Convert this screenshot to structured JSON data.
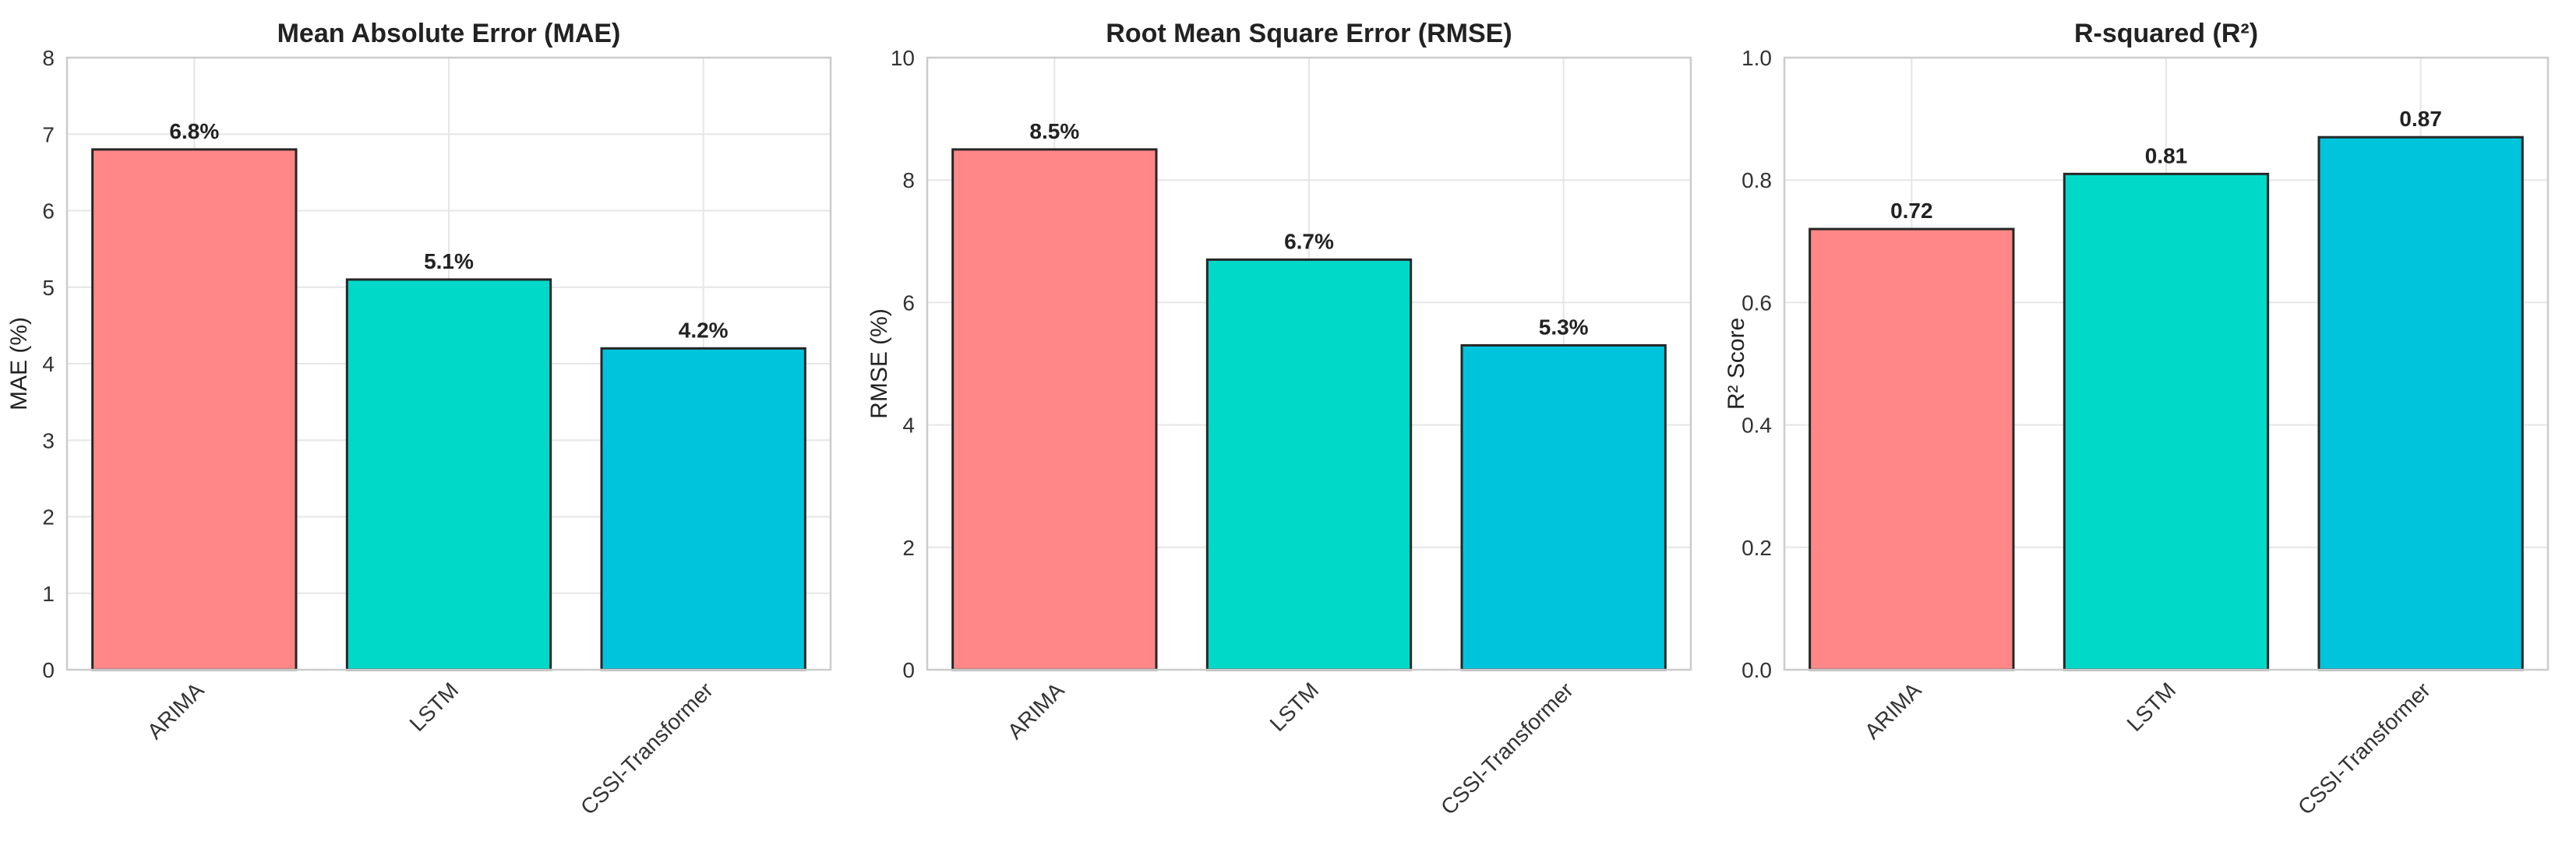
{
  "chart_data": [
    {
      "type": "bar",
      "title": "Mean Absolute Error (MAE)",
      "xlabel": "",
      "ylabel": "MAE (%)",
      "categories": [
        "ARIMA",
        "LSTM",
        "CSSI-Transformer"
      ],
      "values": [
        6.8,
        5.1,
        4.2
      ],
      "data_labels": [
        "6.8%",
        "5.1%",
        "4.2%"
      ],
      "ylim": [
        0,
        8
      ],
      "yticks": [
        0,
        1,
        2,
        3,
        4,
        5,
        6,
        7,
        8
      ],
      "ytick_labels": [
        "0",
        "1",
        "2",
        "3",
        "4",
        "5",
        "6",
        "7",
        "8"
      ],
      "colors": [
        "#ff8787",
        "#00d9c8",
        "#00c4dc"
      ],
      "grid": true
    },
    {
      "type": "bar",
      "title": "Root Mean Square Error (RMSE)",
      "xlabel": "",
      "ylabel": "RMSE (%)",
      "categories": [
        "ARIMA",
        "LSTM",
        "CSSI-Transformer"
      ],
      "values": [
        8.5,
        6.7,
        5.3
      ],
      "data_labels": [
        "8.5%",
        "6.7%",
        "5.3%"
      ],
      "ylim": [
        0,
        10
      ],
      "yticks": [
        0,
        2,
        4,
        6,
        8,
        10
      ],
      "ytick_labels": [
        "0",
        "2",
        "4",
        "6",
        "8",
        "10"
      ],
      "colors": [
        "#ff8787",
        "#00d9c8",
        "#00c4dc"
      ],
      "grid": true
    },
    {
      "type": "bar",
      "title": "R-squared (R²)",
      "xlabel": "",
      "ylabel": "R² Score",
      "categories": [
        "ARIMA",
        "LSTM",
        "CSSI-Transformer"
      ],
      "values": [
        0.72,
        0.81,
        0.87
      ],
      "data_labels": [
        "0.72",
        "0.81",
        "0.87"
      ],
      "ylim": [
        0,
        1
      ],
      "yticks": [
        0,
        0.2,
        0.4,
        0.6,
        0.8,
        1.0
      ],
      "ytick_labels": [
        "0.0",
        "0.2",
        "0.4",
        "0.6",
        "0.8",
        "1.0"
      ],
      "colors": [
        "#ff8787",
        "#00d9c8",
        "#00c4dc"
      ],
      "grid": true
    }
  ]
}
